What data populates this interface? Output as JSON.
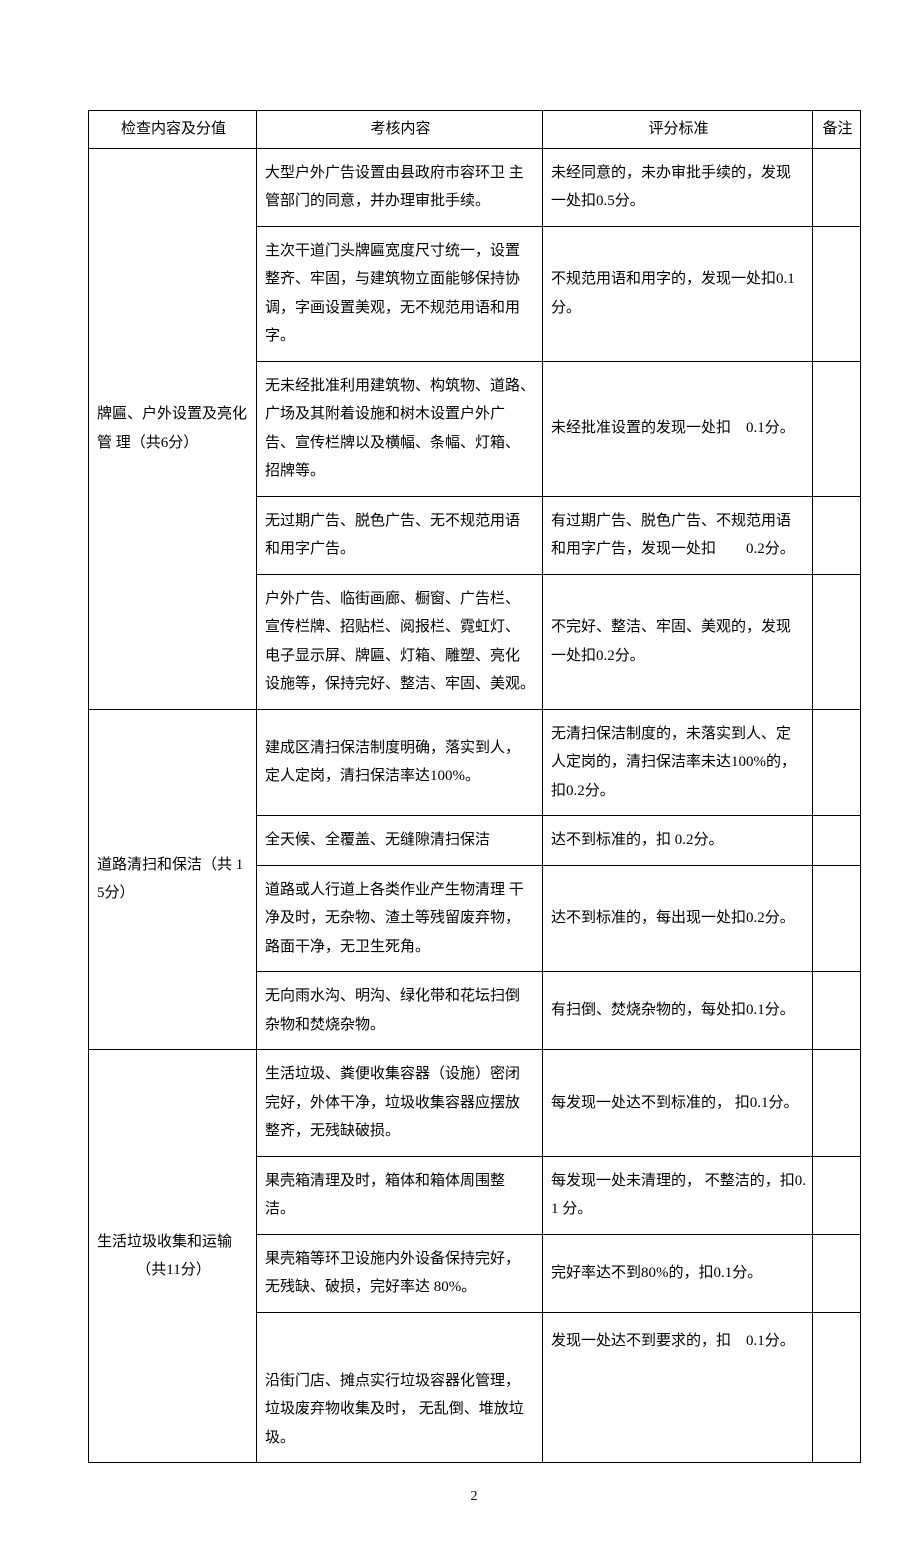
{
  "headers": {
    "col_category": "检查内容及分值",
    "col_content": "考核内容",
    "col_criteria": "评分标准",
    "col_remark": "备注"
  },
  "sections": [
    {
      "category": "牌匾、户外设置及亮化管 理（共6分）",
      "rows": [
        {
          "content": "大型户外广告设置由县政府市容环卫 主管部门的同意，并办理审批手续。",
          "criteria": "未经同意的，未办审批手续的，发现 一处扣0.5分。"
        },
        {
          "content": "主次干道门头牌匾宽度尺寸统一，设置 整齐、牢固，与建筑物立面能够保持协 调，字画设置美观，无不规范用语和用 字。",
          "criteria": "不规范用语和用字的，发现一处扣0.1 分。"
        },
        {
          "content": "无未经批准利用建筑物、构筑物、道路、广场及其附着设施和树木设置户外广 告、宣传栏牌以及横幅、条幅、灯箱、 招牌等。",
          "criteria": "未经批准设置的发现一处扣　0.1分。"
        },
        {
          "content": "无过期广告、脱色广告、无不规范用语 和用字广告。",
          "criteria": "有过期广告、脱色广告、不规范用语 和用字广告，发现一处扣　　0.2分。"
        },
        {
          "content": "户外广告、临街画廊、橱窗、广告栏、 宣传栏牌、招贴栏、阅报栏、霓虹灯、 电子显示屏、牌匾、灯箱、雕塑、亮化 设施等，保持完好、整洁、牢固、美观。",
          "criteria": "不完好、整洁、牢固、美观的，发现 一处扣0.2分。"
        }
      ]
    },
    {
      "category": "道路清扫和保洁（共 15分）",
      "rows": [
        {
          "content": "建成区清扫保洁制度明确，落实到人， 定人定岗，清扫保洁率达100%。",
          "criteria": "无清扫保洁制度的，未落实到人、定 人定岗的，清扫保洁率未达100%的， 扣0.2分。"
        },
        {
          "content": "全天候、全覆盖、无缝隙清扫保洁",
          "criteria": "达不到标准的，扣 0.2分。"
        },
        {
          "content": "道路或人行道上各类作业产生物清理 干净及时，无杂物、渣土等残留废弃物， 路面干净，无卫生死角。",
          "criteria": "达不到标准的，每出现一处扣0.2分。"
        },
        {
          "content": "无向雨水沟、明沟、绿化带和花坛扫倒 杂物和焚烧杂物。",
          "criteria": "有扫倒、焚烧杂物的，每处扣0.1分。"
        }
      ]
    },
    {
      "category": "生活垃圾收集和运输\n（共11分）",
      "center": true,
      "rows": [
        {
          "content": "生活垃圾、粪便收集容器（设施）密闭 完好，外体干净，垃圾收集容器应摆放 整齐，无残缺破损。",
          "criteria": "每发现一处达不到标准的， 扣0.1分。"
        },
        {
          "content": "果壳箱清理及时，箱体和箱体周围整 洁。",
          "criteria": "每发现一处未清理的， 不整洁的，扣0.1 分。"
        },
        {
          "content": "果壳箱等环卫设施内外设备保持完好， 无残缺、破损，完好率达 80%。",
          "criteria": "完好率达不到80%的，扣0.1分。"
        },
        {
          "content": "沿街门店、摊点实行垃圾容器化管理， 垃圾废弃物收集及时， 无乱倒、堆放垃 圾。",
          "criteria": "发现一处达不到要求的，扣　0.1分。",
          "tall": true
        }
      ]
    }
  ],
  "page_number": "2"
}
